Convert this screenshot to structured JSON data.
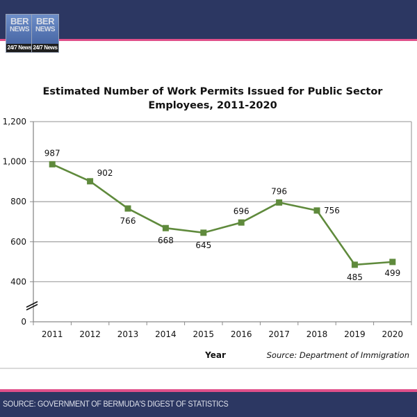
{
  "header": {
    "logo": {
      "line1": "BER",
      "line2": "NEWS",
      "line3": "24/7 News"
    },
    "colors": {
      "bar": "#2c3762",
      "stripe": "#e0508a"
    }
  },
  "footer": {
    "text": "SOURCE: GOVERNMENT OF BERMUDA'S DIGEST OF STATISTICS"
  },
  "chart_data": {
    "type": "line",
    "title": [
      "Estimated Number of Work Permits Issued for Public Sector",
      "Employees, 2011-2020"
    ],
    "xlabel": "Year",
    "ylabel": "",
    "source": "Source: Department of Immigration",
    "categories": [
      "2011",
      "2012",
      "2013",
      "2014",
      "2015",
      "2016",
      "2017",
      "2018",
      "2019",
      "2020"
    ],
    "series": [
      {
        "name": "Work Permits",
        "color": "#5f8a3c",
        "values": [
          987,
          902,
          766,
          668,
          645,
          696,
          796,
          756,
          485,
          499
        ]
      }
    ],
    "data_labels": [
      "987",
      "902",
      "766",
      "668",
      "645",
      "696",
      "796",
      "756",
      "485",
      "499"
    ],
    "yticks": [
      0,
      400,
      600,
      800,
      1000,
      1200
    ],
    "ytick_labels": [
      "0",
      "400",
      "600",
      "800",
      "1,000",
      "1,200"
    ],
    "ylim": [
      0,
      1200
    ],
    "axis_break": "between 0 and 400",
    "grid": true,
    "legend": "none"
  }
}
